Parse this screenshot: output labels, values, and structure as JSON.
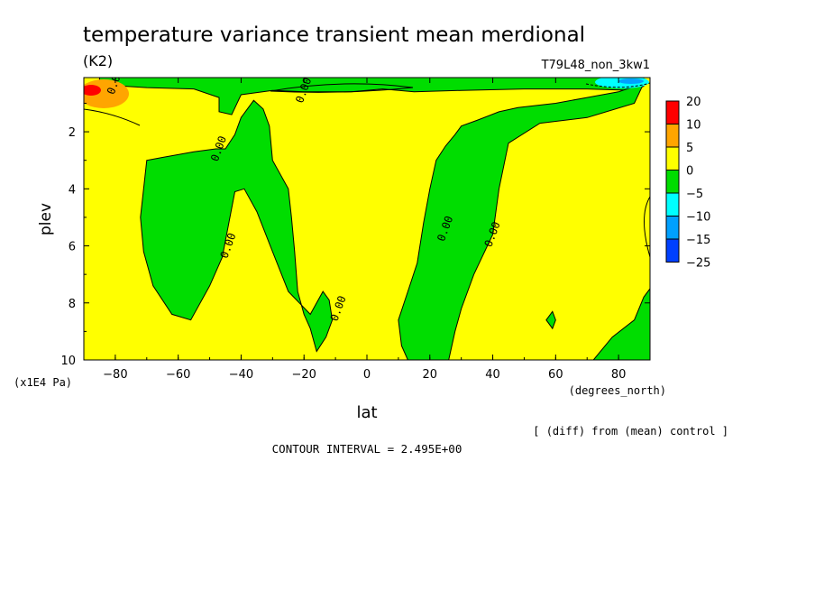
{
  "chart_data": {
    "type": "heatmap",
    "title": "temperature variance transient mean merdional",
    "units": "(K2)",
    "experiment": "T79L48_non_3kw1",
    "xlabel": "lat",
    "x_units": "(degrees_north)",
    "ylabel": "plev",
    "y_units": "(x1E4 Pa)",
    "xlim": [
      -90,
      90
    ],
    "ylim": [
      10,
      0.1
    ],
    "x_ticks": [
      {
        "value": -80,
        "label": "−80"
      },
      {
        "value": -60,
        "label": "−60"
      },
      {
        "value": -40,
        "label": "−40"
      },
      {
        "value": -20,
        "label": "−20"
      },
      {
        "value": 0,
        "label": "0"
      },
      {
        "value": 20,
        "label": "20"
      },
      {
        "value": 40,
        "label": "40"
      },
      {
        "value": 60,
        "label": "60"
      },
      {
        "value": 80,
        "label": "80"
      }
    ],
    "y_ticks": [
      {
        "value": 2,
        "label": "2"
      },
      {
        "value": 4,
        "label": "4"
      },
      {
        "value": 6,
        "label": "6"
      },
      {
        "value": 8,
        "label": "8"
      },
      {
        "value": 10,
        "label": "10"
      }
    ],
    "colorbar": {
      "levels": [
        {
          "label": "20",
          "color": "#ff0000"
        },
        {
          "label": "10",
          "color": "#ffa500"
        },
        {
          "label": "5",
          "color": "#ffff00"
        },
        {
          "label": "0",
          "color": "#00dd00"
        },
        {
          "label": "−5",
          "color": "#00ffff"
        },
        {
          "label": "−10",
          "color": "#00a0ff"
        },
        {
          "label": "−15",
          "color": "#0040ff"
        },
        {
          "label": "−25",
          "color": ""
        }
      ]
    },
    "regions": [
      {
        "name": "neg-upper-band",
        "sign": "negative",
        "points": [
          [
            -85,
            0.35
          ],
          [
            -70,
            0.45
          ],
          [
            -55,
            0.5
          ],
          [
            -47,
            0.8
          ],
          [
            -47,
            1.3
          ],
          [
            -43,
            1.4
          ],
          [
            -40,
            0.7
          ],
          [
            -30,
            0.55
          ],
          [
            -20,
            0.6
          ],
          [
            -5,
            0.6
          ],
          [
            5,
            0.5
          ],
          [
            15,
            0.6
          ],
          [
            30,
            0.55
          ],
          [
            50,
            0.5
          ],
          [
            70,
            0.5
          ],
          [
            85,
            0.55
          ],
          [
            88,
            0.4
          ],
          [
            88,
            0.1
          ],
          [
            -85,
            0.1
          ]
        ]
      },
      {
        "name": "neg-right-upper",
        "sign": "negative",
        "points": [
          [
            88,
            0.3
          ],
          [
            85,
            1.0
          ],
          [
            70,
            1.5
          ],
          [
            55,
            1.7
          ],
          [
            45,
            2.4
          ],
          [
            42,
            4.0
          ],
          [
            40,
            5.6
          ],
          [
            34,
            7.0
          ],
          [
            30,
            8.2
          ],
          [
            28,
            9.0
          ],
          [
            26,
            10
          ],
          [
            13,
            10
          ],
          [
            11,
            9.5
          ],
          [
            10,
            8.6
          ],
          [
            13,
            7.6
          ],
          [
            16,
            6.6
          ],
          [
            18,
            5.2
          ],
          [
            20,
            4.0
          ],
          [
            22,
            3.0
          ],
          [
            25,
            2.5
          ],
          [
            28,
            2.1
          ],
          [
            30,
            1.8
          ],
          [
            35,
            1.6
          ],
          [
            42,
            1.3
          ],
          [
            48,
            1.15
          ],
          [
            60,
            1.0
          ],
          [
            70,
            0.8
          ],
          [
            80,
            0.6
          ]
        ]
      },
      {
        "name": "neg-left-column",
        "sign": "negative",
        "points": [
          [
            -70,
            3.0
          ],
          [
            -65,
            2.9
          ],
          [
            -55,
            2.7
          ],
          [
            -48,
            2.6
          ],
          [
            -45,
            2.6
          ],
          [
            -42,
            2.1
          ],
          [
            -40,
            1.5
          ],
          [
            -36,
            0.9
          ],
          [
            -33,
            1.2
          ],
          [
            -31,
            1.8
          ],
          [
            -30,
            3.0
          ],
          [
            -25,
            4.0
          ],
          [
            -24,
            5.0
          ],
          [
            -23,
            6.2
          ],
          [
            -22,
            7.6
          ],
          [
            -20,
            8.4
          ],
          [
            -18,
            8.9
          ],
          [
            -16,
            9.7
          ],
          [
            -13,
            9.2
          ],
          [
            -11,
            8.6
          ],
          [
            -12,
            7.9
          ],
          [
            -14,
            7.6
          ],
          [
            -18,
            8.4
          ],
          [
            -25,
            7.6
          ],
          [
            -30,
            6.2
          ],
          [
            -35,
            4.8
          ],
          [
            -39,
            4.0
          ],
          [
            -42,
            4.1
          ],
          [
            -46,
            6.4
          ],
          [
            -50,
            7.4
          ],
          [
            -56,
            8.6
          ],
          [
            -62,
            8.4
          ],
          [
            -68,
            7.4
          ],
          [
            -71,
            6.2
          ],
          [
            -72,
            5.0
          ],
          [
            -71,
            4.0
          ]
        ]
      },
      {
        "name": "neg-right-lower",
        "sign": "negative",
        "points": [
          [
            88,
            7.8
          ],
          [
            85,
            8.6
          ],
          [
            78,
            9.2
          ],
          [
            72,
            10
          ],
          [
            90,
            10
          ],
          [
            90,
            7.5
          ]
        ]
      },
      {
        "name": "neg-small-blob",
        "sign": "negative",
        "points": [
          [
            57,
            8.6
          ],
          [
            59,
            8.3
          ],
          [
            60,
            8.6
          ],
          [
            59,
            8.9
          ]
        ]
      }
    ],
    "contour_labels": [
      {
        "lat": -80,
        "plev": 0.25,
        "text": "0.00"
      },
      {
        "lat": -20,
        "plev": 0.55,
        "text": "0.00"
      },
      {
        "lat": -47,
        "plev": 2.6,
        "text": "0.00"
      },
      {
        "lat": -44,
        "plev": 6.0,
        "text": "0.00"
      },
      {
        "lat": -9,
        "plev": 8.2,
        "text": "0.00"
      },
      {
        "lat": 25,
        "plev": 5.4,
        "text": "0.00"
      },
      {
        "lat": 40,
        "plev": 5.6,
        "text": "0.00"
      }
    ],
    "footnote": "[ (diff) from (mean) control ]",
    "contour_interval": "CONTOUR INTERVAL = 2.495E+00"
  }
}
